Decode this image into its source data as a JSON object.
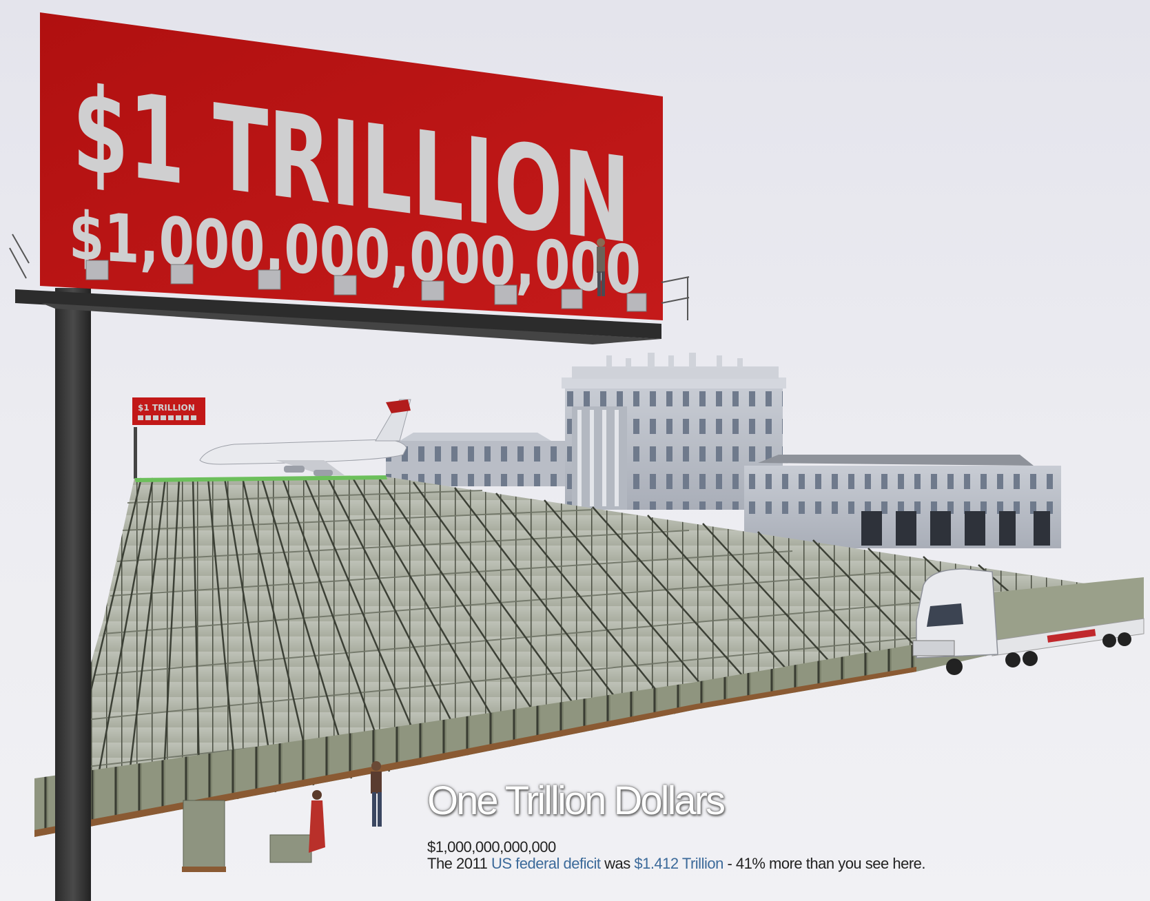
{
  "billboard": {
    "headline": "$1 TRILLION",
    "amount": "$1,000,000,000,000"
  },
  "small_billboard": {
    "headline": "$1 TRILLION"
  },
  "caption": {
    "title": "One Trillion Dollars",
    "amount": "$1,000,000,000,000",
    "deficit_prefix": "The 2011 ",
    "deficit_link": "US federal deficit",
    "deficit_middle": " was ",
    "deficit_value": "$1.412 Trillion",
    "deficit_suffix": " - 41% more than you see here."
  },
  "colors": {
    "billboard_red": "#b51414",
    "billboard_text": "#cfcfd0",
    "background": "#e8e8ed",
    "link_blue": "#3c6a9a"
  }
}
